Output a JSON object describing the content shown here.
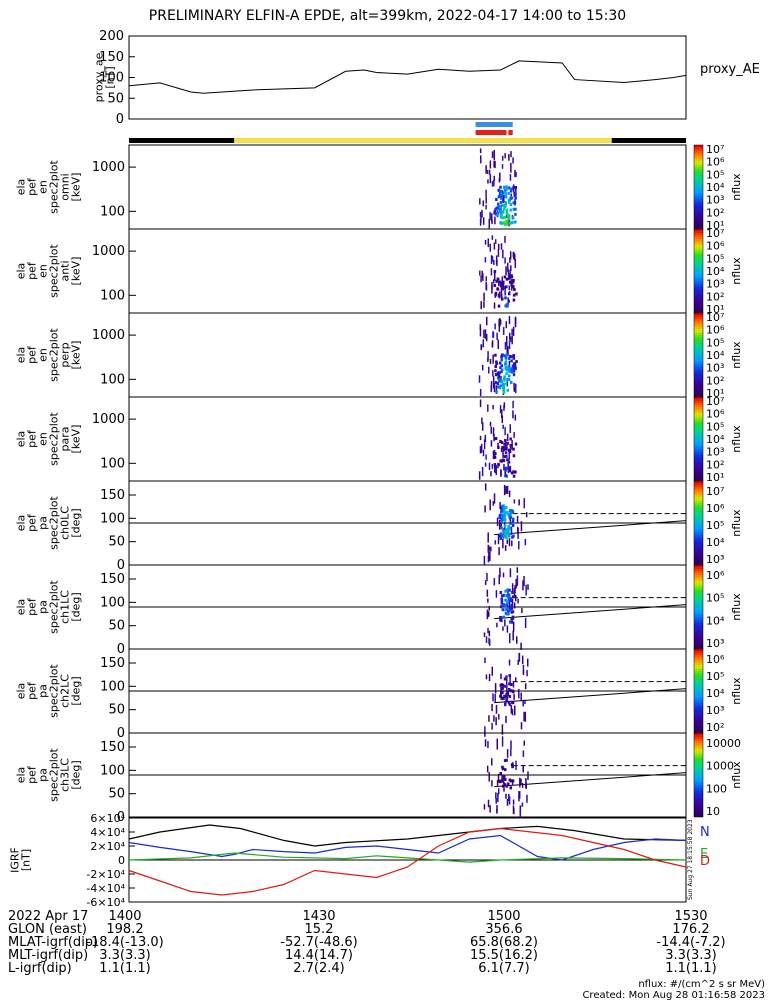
{
  "title": "PRELIMINARY ELFIN-A EPDE, alt=399km, 2022-04-17 14:00 to 15:30",
  "chart_data": [
    {
      "type": "line",
      "id": "proxy_ae",
      "ylabel": [
        "proxy_ae",
        "[nT]"
      ],
      "legend": "proxy_AE",
      "ylim": [
        0,
        200
      ],
      "yticks": [
        "0",
        "50",
        "100",
        "150",
        "200"
      ],
      "series": [
        {
          "name": "proxy_AE",
          "x": [
            0,
            5,
            10,
            12,
            20,
            30,
            35,
            38,
            40,
            45,
            50,
            55,
            60,
            63,
            70,
            72,
            80,
            85,
            88,
            90
          ],
          "y": [
            80,
            87,
            65,
            62,
            70,
            75,
            115,
            118,
            112,
            108,
            120,
            115,
            118,
            140,
            135,
            95,
            88,
            95,
            100,
            105
          ]
        }
      ]
    },
    {
      "type": "bar",
      "id": "segment_bars",
      "spans": [
        {
          "name": "black",
          "color": "#000000",
          "x": [
            0,
            17
          ]
        },
        {
          "name": "yellow",
          "color": "#f5e04a",
          "x": [
            17,
            78
          ]
        },
        {
          "name": "black2",
          "color": "#000000",
          "x": [
            78,
            90
          ]
        },
        {
          "name": "blue",
          "color": "#3a8bea",
          "x": [
            56,
            62
          ]
        },
        {
          "name": "red1",
          "color": "#e0201a",
          "x": [
            56,
            61
          ]
        },
        {
          "name": "red2",
          "color": "#e0201a",
          "x": [
            61.3,
            62
          ]
        }
      ]
    },
    {
      "type": "heatmap",
      "id": "spectrograms",
      "x_range_min": [
        56.5,
        62.5
      ],
      "panels": [
        {
          "ylabel": [
            "ela",
            "pef",
            "en",
            "spec2plot",
            "omni",
            "[keV]"
          ],
          "yticks": [
            "100",
            "1000"
          ],
          "cbar_ticks": [
            "10⁷",
            "10⁶",
            "10⁵",
            "10⁴",
            "10³",
            "10²",
            "10¹"
          ],
          "cbar_label": "nflux",
          "intensity": 1.0
        },
        {
          "ylabel": [
            "ela",
            "pef",
            "en",
            "spec2plot",
            "anti",
            "[keV]"
          ],
          "yticks": [
            "100",
            "1000"
          ],
          "cbar_ticks": [
            "10⁷",
            "10⁶",
            "10⁵",
            "10⁴",
            "10³",
            "10²",
            "10¹"
          ],
          "cbar_label": "nflux",
          "intensity": 0.5
        },
        {
          "ylabel": [
            "ela",
            "pef",
            "en",
            "spec2plot",
            "perp",
            "[keV]"
          ],
          "yticks": [
            "100",
            "1000"
          ],
          "cbar_ticks": [
            "10⁷",
            "10⁶",
            "10⁵",
            "10⁴",
            "10³",
            "10²",
            "10¹"
          ],
          "cbar_label": "nflux",
          "intensity": 0.9
        },
        {
          "ylabel": [
            "ela",
            "pef",
            "en",
            "spec2plot",
            "para",
            "[keV]"
          ],
          "yticks": [
            "100",
            "1000"
          ],
          "cbar_ticks": [
            "10⁷",
            "10⁶",
            "10⁵",
            "10⁴",
            "10³",
            "10²",
            "10¹"
          ],
          "cbar_label": "nflux",
          "intensity": 0.5
        }
      ]
    },
    {
      "type": "heatmap",
      "id": "pitch_angle",
      "ylim": [
        0,
        180
      ],
      "yticks": [
        "0",
        "50",
        "100",
        "150"
      ],
      "panels": [
        {
          "ylabel": [
            "ela",
            "pef",
            "pa",
            "spec2plot",
            "ch0LC",
            "[deg]"
          ],
          "cbar_ticks": [
            "10⁷",
            "10⁶",
            "10⁵",
            "10⁴",
            "10³"
          ],
          "cbar_label": "nflux",
          "intensity": 0.9
        },
        {
          "ylabel": [
            "ela",
            "pef",
            "pa",
            "spec2plot",
            "ch1LC",
            "[deg]"
          ],
          "cbar_ticks": [
            "10⁶",
            "10⁵",
            "10⁴",
            "10³"
          ],
          "cbar_label": "nflux",
          "intensity": 0.7
        },
        {
          "ylabel": [
            "ela",
            "pef",
            "pa",
            "spec2plot",
            "ch2LC",
            "[deg]"
          ],
          "cbar_ticks": [
            "10⁶",
            "10⁵",
            "10⁴",
            "10³",
            "10²"
          ],
          "cbar_label": "nflux",
          "intensity": 0.4
        },
        {
          "ylabel": [
            "ela",
            "pef",
            "pa",
            "spec2plot",
            "ch3LC",
            "[deg]"
          ],
          "cbar_ticks": [
            "10000",
            "1000",
            "100",
            "10"
          ],
          "cbar_label": "nflux",
          "intensity": 0.3
        }
      ]
    },
    {
      "type": "line",
      "id": "igrf",
      "ylabel": [
        "IGRF",
        "[nT]"
      ],
      "ylim": [
        -60000,
        60000
      ],
      "yticks": [
        "-6×10⁴",
        "-4×10⁴",
        "-2×10⁴",
        "0",
        "2×10⁴",
        "4×10⁴",
        "6×10⁴"
      ],
      "legend": [
        "N",
        "E",
        "D"
      ],
      "series": [
        {
          "name": "black",
          "color": "#000000",
          "x": [
            0,
            5,
            13,
            18,
            25,
            30,
            35,
            45,
            55,
            60,
            66,
            72,
            80,
            90
          ],
          "y": [
            30000,
            40000,
            50000,
            45000,
            28000,
            20000,
            25000,
            30000,
            40000,
            45000,
            48000,
            42000,
            30000,
            28000
          ]
        },
        {
          "name": "N",
          "color": "#1a2cc8",
          "x": [
            0,
            5,
            10,
            15,
            17,
            20,
            25,
            30,
            35,
            40,
            45,
            50,
            55,
            60,
            66,
            70,
            75,
            80,
            85,
            90
          ],
          "y": [
            25000,
            18000,
            12000,
            5000,
            8000,
            15000,
            12000,
            10000,
            18000,
            20000,
            15000,
            10000,
            30000,
            35000,
            5000,
            0,
            15000,
            25000,
            30000,
            28000
          ]
        },
        {
          "name": "E",
          "color": "#22aa22",
          "x": [
            0,
            10,
            17,
            25,
            35,
            40,
            45,
            55,
            60,
            70,
            80,
            90
          ],
          "y": [
            0,
            3000,
            10000,
            4000,
            2000,
            6000,
            3000,
            -3000,
            0,
            3000,
            2000,
            0
          ]
        },
        {
          "name": "D",
          "color": "#dd1a14",
          "x": [
            0,
            5,
            10,
            15,
            20,
            25,
            30,
            35,
            40,
            45,
            50,
            55,
            60,
            65,
            70,
            75,
            80,
            85,
            90
          ],
          "y": [
            -15000,
            -30000,
            -45000,
            -50000,
            -45000,
            -35000,
            -15000,
            -20000,
            -25000,
            -10000,
            20000,
            40000,
            45000,
            40000,
            35000,
            25000,
            15000,
            0,
            -10000
          ]
        }
      ]
    }
  ],
  "vertical_markers": {
    "solid_y": 90,
    "dashed_y": 110
  },
  "side_text": "Sun Aug 27 18:15:58 2023",
  "xaxis": {
    "rows": [
      "2022 Apr 17",
      "GLON (east)",
      "MLAT-igrf(dip)",
      "MLT-igrf(dip)",
      "L-igrf(dip)"
    ],
    "columns": [
      {
        "time": "1400",
        "vals": [
          "198.2",
          "-18.4(-13.0)",
          "3.3(3.3)",
          "1.1(1.1)"
        ]
      },
      {
        "time": "1430",
        "vals": [
          "15.2",
          "-52.7(-48.6)",
          "14.4(14.7)",
          "2.7(2.4)"
        ]
      },
      {
        "time": "1500",
        "vals": [
          "356.6",
          "65.8(68.2)",
          "15.5(16.2)",
          "6.1(7.7)"
        ]
      },
      {
        "time": "1530",
        "vals": [
          "176.2",
          "-14.4(-7.2)",
          "3.3(3.3)",
          "1.1(1.1)"
        ]
      }
    ]
  },
  "footer": {
    "units": "nflux: #/(cm^2 s sr MeV)",
    "created": "Created: Mon Aug 28 01:16:58 2023"
  }
}
